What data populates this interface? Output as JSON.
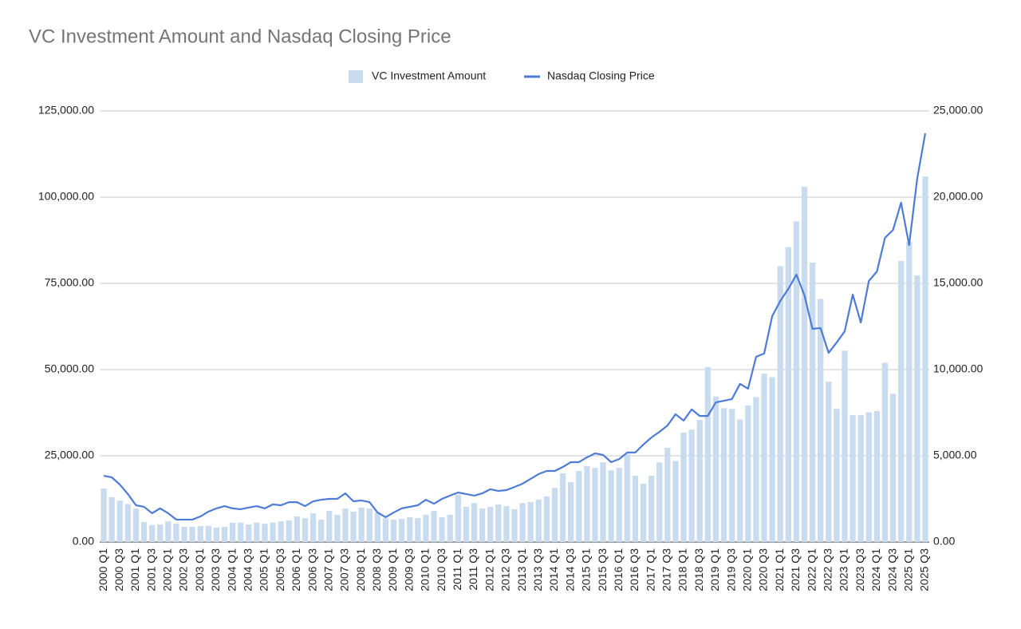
{
  "chart_data": {
    "type": "bar_line",
    "title": "VC Investment Amount and Nasdaq Closing Price",
    "categories": [
      "2000 Q1",
      null,
      "2000 Q3",
      null,
      "2001 Q1",
      null,
      "2001 Q3",
      null,
      "2002 Q1",
      null,
      "2002 Q3",
      null,
      "2003 Q1",
      null,
      "2003 Q3",
      null,
      "2004 Q1",
      null,
      "2004 Q3",
      null,
      "2005 Q1",
      null,
      "2005 Q3",
      null,
      "2006 Q1",
      null,
      "2006 Q3",
      null,
      "2007 Q1",
      null,
      "2007 Q3",
      null,
      "2008 Q1",
      null,
      "2008 Q3",
      null,
      "2009 Q1",
      null,
      "2009 Q3",
      null,
      "2010 Q1",
      null,
      "2010 Q3",
      null,
      "2011 Q1",
      null,
      "2011 Q3",
      null,
      "2012 Q1",
      null,
      "2012 Q3",
      null,
      "2013 Q1",
      null,
      "2013 Q3",
      null,
      "2014 Q1",
      null,
      "2014 Q3",
      null,
      "2015 Q1",
      null,
      "2015 Q3",
      null,
      "2016 Q1",
      null,
      "2016 Q3",
      null,
      "2017 Q1",
      null,
      "2017 Q3",
      null,
      "2018 Q1",
      null,
      "2018 Q3",
      null,
      "2019 Q1",
      null,
      "2019 Q3",
      null,
      "2020 Q1",
      null,
      "2020 Q3",
      null,
      "2021 Q1",
      null,
      "2021 Q3",
      null,
      "2022 Q1",
      null,
      "2022 Q3",
      null,
      "2023 Q1",
      null,
      "2023 Q3",
      null,
      "2024 Q1",
      null,
      "2024 Q3",
      null,
      "2025 Q1",
      null,
      "2025 Q3"
    ],
    "series": [
      {
        "name": "VC Investment Amount",
        "color": "#c9dbef",
        "axis": "y",
        "values": [
          15500,
          13000,
          12000,
          11000,
          9700,
          5800,
          4900,
          5100,
          6000,
          5300,
          4400,
          4400,
          4600,
          4700,
          4200,
          4400,
          5600,
          5600,
          5100,
          5600,
          5300,
          5600,
          6000,
          6300,
          7400,
          6900,
          8300,
          6500,
          9000,
          7900,
          9700,
          8800,
          10000,
          9700,
          8600,
          6900,
          6500,
          6700,
          7200,
          6900,
          7900,
          9000,
          7200,
          7900,
          13700,
          10200,
          11300,
          9700,
          10200,
          10900,
          10400,
          9500,
          11300,
          11600,
          12300,
          13200,
          15700,
          19900,
          17400,
          20600,
          22000,
          21500,
          23100,
          20800,
          21500,
          25500,
          19200,
          16900,
          19200,
          23100,
          27300,
          23500,
          31700,
          32600,
          35400,
          50700,
          42200,
          38800,
          38600,
          35500,
          39600,
          42000,
          48800,
          47800,
          80000,
          85500,
          93000,
          103000,
          81000,
          70500,
          46500,
          38600,
          55500,
          36800,
          36800,
          37600,
          38000,
          52000,
          43000,
          81500,
          87000,
          77300,
          106000
        ]
      },
      {
        "name": "Nasdaq Closing Price",
        "color": "#4e7bd6",
        "axis": "y2",
        "values": [
          3840,
          3750,
          3330,
          2780,
          2130,
          2040,
          1670,
          1950,
          1670,
          1300,
          1300,
          1300,
          1480,
          1760,
          1950,
          2080,
          1950,
          1900,
          2000,
          2080,
          1950,
          2180,
          2130,
          2310,
          2310,
          2080,
          2360,
          2450,
          2500,
          2500,
          2820,
          2360,
          2410,
          2310,
          1710,
          1440,
          1710,
          1950,
          2040,
          2130,
          2450,
          2220,
          2500,
          2690,
          2870,
          2780,
          2690,
          2820,
          3060,
          2960,
          3010,
          3190,
          3380,
          3660,
          3940,
          4120,
          4120,
          4350,
          4630,
          4630,
          4910,
          5140,
          5050,
          4630,
          4810,
          5190,
          5190,
          5650,
          6060,
          6390,
          6760,
          7410,
          7040,
          7690,
          7310,
          7310,
          8100,
          8190,
          8290,
          9170,
          8890,
          10740,
          10930,
          13100,
          13980,
          14680,
          15510,
          14310,
          12360,
          12410,
          10970,
          11570,
          12220,
          14350,
          12730,
          15140,
          15690,
          17640,
          18100,
          19680,
          17220,
          21070,
          23700
        ]
      }
    ],
    "ylim": [
      0,
      125000
    ],
    "yticks": [
      {
        "value": 0,
        "label": "0.00"
      },
      {
        "value": 25000,
        "label": "25,000.00"
      },
      {
        "value": 50000,
        "label": "50,000.00"
      },
      {
        "value": 75000,
        "label": "75,000.00"
      },
      {
        "value": 100000,
        "label": "100,000.00"
      },
      {
        "value": 125000,
        "label": "125,000.00"
      }
    ],
    "y2lim": [
      0,
      25000
    ],
    "y2ticks": [
      {
        "value": 0,
        "label": "0.00"
      },
      {
        "value": 5000,
        "label": "5,000.00"
      },
      {
        "value": 10000,
        "label": "10,000.00"
      },
      {
        "value": 15000,
        "label": "15,000.00"
      },
      {
        "value": 20000,
        "label": "20,000.00"
      },
      {
        "value": 25000,
        "label": "25,000.00"
      }
    ],
    "grid": true,
    "legend": "top"
  }
}
